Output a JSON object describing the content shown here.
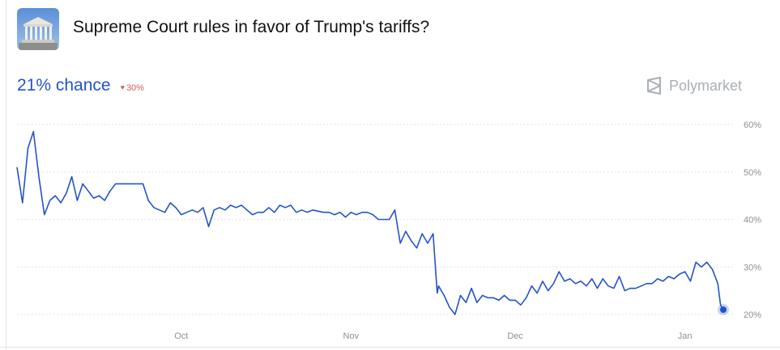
{
  "market": {
    "title": "Supreme Court rules in favor of Trump's tariffs?",
    "chance_text": "21% chance",
    "change_text": "30%",
    "change_direction_icon": "heart-down-icon",
    "brand": "Polymarket",
    "thumbnail_icon": "supreme-court-building-icon"
  },
  "colors": {
    "line": "#2453c8",
    "accent": "#2453c8",
    "negative": "#d85c5c",
    "grid": "#d8dbe0",
    "muted": "#a9aeb6"
  },
  "chart_data": {
    "type": "line",
    "title": "",
    "xlabel": "",
    "ylabel": "",
    "x_tick_labels": [
      "Oct",
      "Nov",
      "Dec",
      "Jan"
    ],
    "y_tick_labels": [
      "20%",
      "30%",
      "40%",
      "50%",
      "60%"
    ],
    "y_ticks": [
      20,
      30,
      40,
      50,
      60
    ],
    "ylim": [
      18,
      62
    ],
    "x_range": [
      "2025-09-01",
      "2026-01-08"
    ],
    "grid": "horizontal dotted",
    "series": [
      {
        "points": [
          [
            "2025-09-01",
            51
          ],
          [
            "2025-09-02",
            43.5
          ],
          [
            "2025-09-03",
            55
          ],
          [
            "2025-09-04",
            58.5
          ],
          [
            "2025-09-05",
            49
          ],
          [
            "2025-09-06",
            41
          ],
          [
            "2025-09-07",
            44
          ],
          [
            "2025-09-08",
            45
          ],
          [
            "2025-09-09",
            43.5
          ],
          [
            "2025-09-10",
            45.5
          ],
          [
            "2025-09-11",
            49
          ],
          [
            "2025-09-12",
            44
          ],
          [
            "2025-09-13",
            47.5
          ],
          [
            "2025-09-14",
            46
          ],
          [
            "2025-09-15",
            44.5
          ],
          [
            "2025-09-16",
            45
          ],
          [
            "2025-09-17",
            44
          ],
          [
            "2025-09-18",
            46
          ],
          [
            "2025-09-19",
            47.5
          ],
          [
            "2025-09-20",
            47.5
          ],
          [
            "2025-09-22",
            47.5
          ],
          [
            "2025-09-24",
            47.5
          ],
          [
            "2025-09-25",
            44
          ],
          [
            "2025-09-26",
            42.5
          ],
          [
            "2025-09-27",
            42
          ],
          [
            "2025-09-28",
            41.5
          ],
          [
            "2025-09-29",
            43.5
          ],
          [
            "2025-09-30",
            42.5
          ],
          [
            "2025-10-01",
            41
          ],
          [
            "2025-10-02",
            41.5
          ],
          [
            "2025-10-03",
            42
          ],
          [
            "2025-10-04",
            41.5
          ],
          [
            "2025-10-05",
            42.5
          ],
          [
            "2025-10-06",
            38.5
          ],
          [
            "2025-10-07",
            42
          ],
          [
            "2025-10-08",
            42.5
          ],
          [
            "2025-10-09",
            42
          ],
          [
            "2025-10-10",
            43
          ],
          [
            "2025-10-11",
            42.5
          ],
          [
            "2025-10-12",
            43
          ],
          [
            "2025-10-13",
            42
          ],
          [
            "2025-10-14",
            41
          ],
          [
            "2025-10-15",
            41.5
          ],
          [
            "2025-10-16",
            41.5
          ],
          [
            "2025-10-17",
            42.5
          ],
          [
            "2025-10-18",
            41.5
          ],
          [
            "2025-10-19",
            43
          ],
          [
            "2025-10-20",
            42.5
          ],
          [
            "2025-10-21",
            43
          ],
          [
            "2025-10-22",
            41.5
          ],
          [
            "2025-10-23",
            42
          ],
          [
            "2025-10-24",
            41.5
          ],
          [
            "2025-10-25",
            42
          ],
          [
            "2025-10-27",
            41.5
          ],
          [
            "2025-10-28",
            41.5
          ],
          [
            "2025-10-29",
            41
          ],
          [
            "2025-10-30",
            41.5
          ],
          [
            "2025-10-31",
            40.5
          ],
          [
            "2025-11-01",
            41.5
          ],
          [
            "2025-11-02",
            41
          ],
          [
            "2025-11-03",
            41.5
          ],
          [
            "2025-11-04",
            41.5
          ],
          [
            "2025-11-05",
            41
          ],
          [
            "2025-11-06",
            40
          ],
          [
            "2025-11-07",
            40
          ],
          [
            "2025-11-08",
            40
          ],
          [
            "2025-11-09",
            42
          ],
          [
            "2025-11-10",
            35
          ],
          [
            "2025-11-11",
            37.5
          ],
          [
            "2025-11-12",
            35.5
          ],
          [
            "2025-11-13",
            34
          ],
          [
            "2025-11-14",
            37
          ],
          [
            "2025-11-15",
            35
          ],
          [
            "2025-11-16",
            37
          ],
          [
            "2025-11-16T18:00",
            24.5
          ],
          [
            "2025-11-17",
            26
          ],
          [
            "2025-11-18",
            24
          ],
          [
            "2025-11-19",
            21.5
          ],
          [
            "2025-11-20",
            20
          ],
          [
            "2025-11-21",
            24
          ],
          [
            "2025-11-22",
            22.5
          ],
          [
            "2025-11-23",
            25.5
          ],
          [
            "2025-11-24",
            22.5
          ],
          [
            "2025-11-25",
            24
          ],
          [
            "2025-11-26",
            23.5
          ],
          [
            "2025-11-27",
            23.5
          ],
          [
            "2025-11-28",
            23
          ],
          [
            "2025-11-29",
            24
          ],
          [
            "2025-11-30",
            23
          ],
          [
            "2025-12-01",
            23
          ],
          [
            "2025-12-02",
            22
          ],
          [
            "2025-12-03",
            23.5
          ],
          [
            "2025-12-04",
            26
          ],
          [
            "2025-12-05",
            24.5
          ],
          [
            "2025-12-06",
            27
          ],
          [
            "2025-12-07",
            25
          ],
          [
            "2025-12-08",
            26.5
          ],
          [
            "2025-12-09",
            29
          ],
          [
            "2025-12-10",
            27
          ],
          [
            "2025-12-11",
            27.5
          ],
          [
            "2025-12-12",
            26.5
          ],
          [
            "2025-12-13",
            27
          ],
          [
            "2025-12-14",
            26
          ],
          [
            "2025-12-15",
            27.5
          ],
          [
            "2025-12-16",
            25.5
          ],
          [
            "2025-12-17",
            27.5
          ],
          [
            "2025-12-18",
            26
          ],
          [
            "2025-12-19",
            25.5
          ],
          [
            "2025-12-20",
            28
          ],
          [
            "2025-12-21",
            25
          ],
          [
            "2025-12-22",
            25.5
          ],
          [
            "2025-12-23",
            25.5
          ],
          [
            "2025-12-24",
            26
          ],
          [
            "2025-12-25",
            26.5
          ],
          [
            "2025-12-26",
            26.5
          ],
          [
            "2025-12-27",
            27.5
          ],
          [
            "2025-12-28",
            27
          ],
          [
            "2025-12-29",
            28
          ],
          [
            "2025-12-30",
            27.5
          ],
          [
            "2025-12-31",
            28.5
          ],
          [
            "2026-01-01",
            29
          ],
          [
            "2026-01-02",
            27
          ],
          [
            "2026-01-03",
            31
          ],
          [
            "2026-01-04",
            30
          ],
          [
            "2026-01-05",
            31
          ],
          [
            "2026-01-06",
            29.5
          ],
          [
            "2026-01-07",
            26.5
          ],
          [
            "2026-01-07T12:00",
            22
          ]
        ],
        "last_value": 21
      }
    ]
  }
}
